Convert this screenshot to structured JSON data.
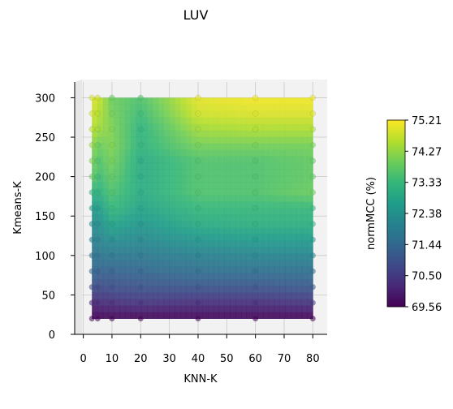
{
  "chart_data": {
    "type": "heatmap",
    "title": "LUV",
    "xlabel": "KNN-K",
    "ylabel": "Kmeans-K",
    "colorbar_label": "normMCC (%)",
    "colormap": "viridis",
    "x_ticks": [
      0,
      10,
      20,
      30,
      40,
      50,
      60,
      70,
      80
    ],
    "y_ticks": [
      0,
      50,
      100,
      150,
      200,
      250,
      300
    ],
    "xlim": [
      -3,
      85
    ],
    "ylim": [
      0,
      320
    ],
    "colorbar_ticks": [
      "69.56",
      "70.50",
      "71.44",
      "72.38",
      "73.33",
      "74.27",
      "75.21"
    ],
    "crange": [
      69.56,
      75.21
    ],
    "grid": true,
    "knn_k": [
      3,
      5,
      10,
      20,
      40,
      60,
      80
    ],
    "kmeans_k": [
      20,
      40,
      60,
      80,
      100,
      120,
      140,
      160,
      180,
      200,
      220,
      240,
      260,
      280,
      300
    ],
    "values": [
      [
        69.6,
        69.6,
        69.6,
        69.6,
        69.6,
        69.6,
        69.6
      ],
      [
        70.1,
        70.2,
        70.3,
        70.4,
        70.3,
        70.3,
        70.4
      ],
      [
        70.9,
        70.8,
        70.9,
        71.0,
        71.0,
        71.0,
        71.1
      ],
      [
        71.4,
        71.3,
        71.3,
        71.4,
        71.6,
        71.6,
        71.6
      ],
      [
        71.7,
        71.7,
        71.8,
        71.8,
        72.0,
        72.1,
        72.1
      ],
      [
        72.0,
        72.1,
        72.3,
        72.2,
        72.5,
        72.6,
        72.6
      ],
      [
        72.3,
        72.3,
        72.8,
        72.5,
        73.0,
        73.1,
        73.1
      ],
      [
        72.6,
        72.6,
        73.3,
        72.8,
        73.3,
        73.3,
        73.3
      ],
      [
        73.2,
        73.1,
        73.6,
        73.0,
        73.6,
        73.6,
        73.9
      ],
      [
        73.9,
        73.4,
        73.8,
        73.0,
        73.6,
        73.6,
        73.8
      ],
      [
        74.1,
        73.6,
        74.0,
        73.0,
        73.6,
        73.6,
        73.8
      ],
      [
        74.3,
        73.9,
        74.1,
        73.2,
        74.0,
        74.0,
        74.0
      ],
      [
        74.6,
        74.4,
        74.1,
        73.2,
        74.4,
        74.5,
        74.5
      ],
      [
        74.8,
        74.6,
        74.0,
        73.4,
        74.8,
        74.9,
        74.9
      ],
      [
        74.9,
        74.8,
        73.9,
        73.6,
        75.0,
        75.1,
        75.1
      ]
    ]
  }
}
